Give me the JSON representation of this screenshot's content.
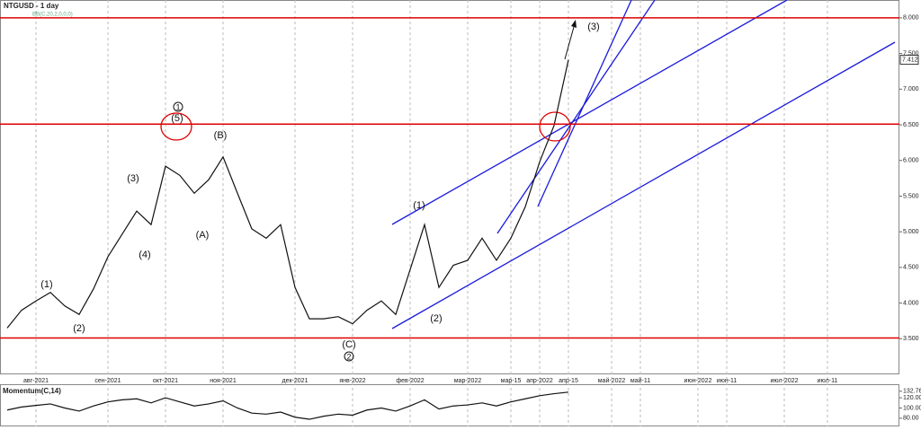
{
  "chart_data": [
    {
      "type": "line",
      "title": "NTGUSD - 1 day",
      "subtitle": "BB(C,20,2,0,0,0)",
      "categories": [
        null,
        null,
        "авг-2021",
        null,
        null,
        null,
        null,
        "сен-2021",
        null,
        null,
        null,
        "окт-2021",
        null,
        null,
        null,
        "ноя-2021",
        null,
        null,
        null,
        null,
        "дек-2021",
        null,
        null,
        null,
        "янв-2022",
        null,
        null,
        null,
        "фев-2022",
        null,
        null,
        null,
        "мар-2022",
        null,
        null,
        "мар-15",
        null,
        "апр-2022",
        null,
        "апр-15",
        null,
        null,
        "май-2022",
        null,
        "май-11",
        null,
        null,
        null,
        "июн-2022",
        null,
        "июн-11",
        null,
        null,
        null,
        "июл-2022",
        null,
        null,
        "июл-11",
        null,
        null,
        null,
        null
      ],
      "series": [
        {
          "name": "NTGUSD",
          "color": "#111111",
          "values": [
            3.65,
            3.9,
            4.03,
            4.15,
            3.96,
            3.84,
            4.2,
            4.65,
            4.97,
            5.29,
            5.1,
            5.92,
            5.79,
            5.54,
            5.73,
            6.05,
            5.54,
            5.04,
            4.91,
            5.1,
            4.22,
            3.78,
            3.78,
            3.81,
            3.71,
            3.9,
            4.03,
            3.84,
            4.47,
            5.1,
            4.22,
            4.53,
            4.6,
            4.91,
            4.6,
            4.91,
            5.35,
            5.98,
            6.49,
            7.412,
            null,
            null,
            null,
            null,
            null,
            null,
            null,
            null,
            null,
            null,
            null,
            null,
            null,
            null,
            null,
            null,
            null,
            null,
            null,
            null,
            null,
            null
          ]
        }
      ],
      "ylim": [
        2.9,
        8.25
      ],
      "yticks": [
        {
          "value": 8.0,
          "label": "8.000"
        },
        {
          "value": 7.5,
          "label": "7.500"
        },
        {
          "value": 7.0,
          "label": "7.000"
        },
        {
          "value": 6.5,
          "label": "6.500"
        },
        {
          "value": 6.0,
          "label": "6.000"
        },
        {
          "value": 5.5,
          "label": "5.500"
        },
        {
          "value": 5.0,
          "label": "5.000"
        },
        {
          "value": 4.5,
          "label": "4.500"
        },
        {
          "value": 4.0,
          "label": "4.000"
        },
        {
          "value": 3.5,
          "label": "3.500"
        }
      ],
      "levels": [
        8.0,
        6.51,
        3.51
      ],
      "level_color": "#e00000",
      "annotations": [
        "(1)",
        "(2)",
        "(3)",
        "(4)",
        "(5)",
        "1",
        "(A)",
        "(B)",
        "(C)",
        "2",
        "(1)",
        "(2)",
        "(3)"
      ],
      "grid": true
    },
    {
      "type": "line",
      "title": "Momentum(C,14)",
      "series": [
        {
          "name": "Momentum",
          "color": "#111111",
          "values": [
            96,
            102,
            105,
            108,
            100,
            94,
            104,
            112,
            116,
            118,
            110,
            120,
            112,
            104,
            108,
            114,
            100,
            90,
            88,
            92,
            82,
            78,
            84,
            88,
            86,
            96,
            100,
            94,
            104,
            116,
            98,
            104,
            106,
            110,
            104,
            112,
            118,
            124,
            128,
            131,
            null,
            null,
            null,
            null,
            null,
            null,
            null,
            null,
            null,
            null,
            null,
            null,
            null,
            null,
            null,
            null,
            null,
            null,
            null,
            null,
            null,
            null
          ]
        }
      ],
      "ylim": [
        64,
        143
      ],
      "yticks": [
        132.76,
        {
          "value": 120,
          "label": "120.00"
        },
        {
          "value": 100,
          "label": "100.00"
        },
        {
          "value": 80,
          "label": "80.00"
        }
      ]
    }
  ]
}
